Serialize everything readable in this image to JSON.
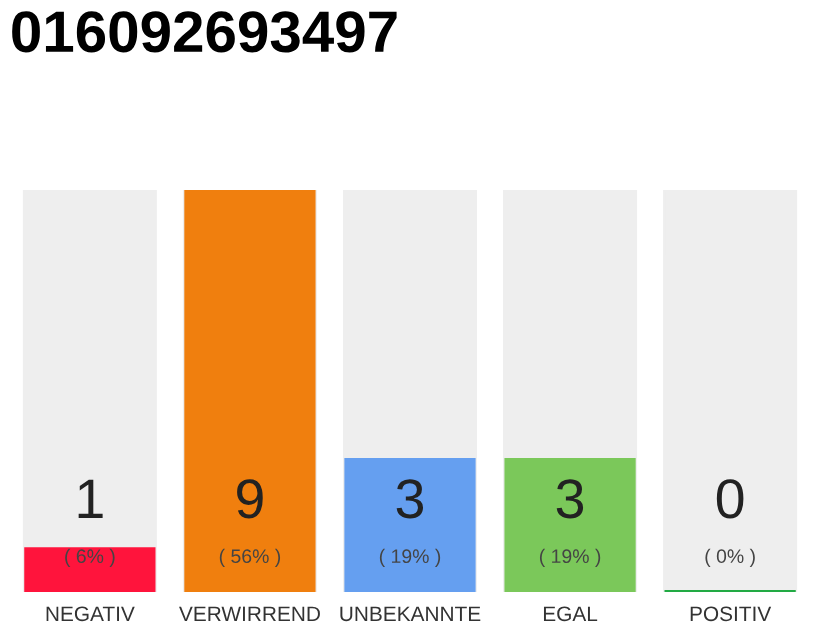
{
  "chart_data": {
    "type": "bar",
    "title": "016092693497",
    "categories": [
      "NEGATIV",
      "VERWIRREND",
      "UNBEKANNTE",
      "EGAL",
      "POSITIV"
    ],
    "values": [
      1,
      9,
      3,
      3,
      0
    ],
    "colors": [
      "#ff143c",
      "#f07f0e",
      "#659ff0",
      "#7bc85a",
      "#22aa44"
    ],
    "value_labels": [
      "1",
      "9",
      "3",
      "3",
      "0"
    ],
    "annotations": [
      {
        "text": "( 6% )",
        "x": "NEGATIV",
        "y": 0
      },
      {
        "text": "( 56% )",
        "x": "VERWIRREND",
        "y": 0
      },
      {
        "text": "( 19% )",
        "x": "UNBEKANNTE",
        "y": 0
      },
      {
        "text": "( 19% )",
        "x": "EGAL",
        "y": 0
      },
      {
        "text": "( 0% )",
        "x": "POSITIV",
        "y": 0
      }
    ],
    "grid": false,
    "legend": false
  }
}
